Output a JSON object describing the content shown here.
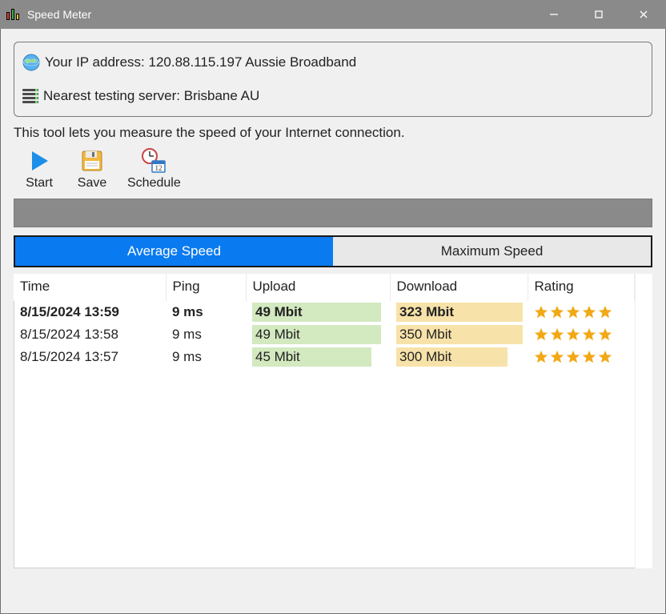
{
  "window": {
    "title": "Speed Meter"
  },
  "info": {
    "ip_label": "Your IP address:",
    "ip_value": "120.88.115.197",
    "isp": "Aussie Broadband",
    "server_label": "Nearest testing server:",
    "server_value": "Brisbane AU"
  },
  "description": "This tool lets you measure the speed of your Internet connection.",
  "toolbar": {
    "start_label": "Start",
    "save_label": "Save",
    "schedule_label": "Schedule"
  },
  "tabs": {
    "avg_label": "Average Speed",
    "max_label": "Maximum Speed",
    "active": "avg",
    "active_bg": "#0a7af0",
    "inactive_bg": "#e8e8e8"
  },
  "table": {
    "columns": {
      "time": "Time",
      "ping": "Ping",
      "upload": "Upload",
      "download": "Download",
      "rating": "Rating"
    },
    "upload_bar_color": "#d3e9c0",
    "download_bar_color": "#f7e2a9",
    "star_color": "#f2a916",
    "rows": [
      {
        "bold": true,
        "time": "8/15/2024 13:59",
        "ping": "9 ms",
        "upload_label": "49 Mbit",
        "upload_fill_pct": 97,
        "download_label": "323 Mbit",
        "download_fill_pct": 100,
        "stars": 5
      },
      {
        "bold": false,
        "time": "8/15/2024 13:58",
        "ping": "9 ms",
        "upload_label": "49 Mbit",
        "upload_fill_pct": 97,
        "download_label": "350 Mbit",
        "download_fill_pct": 100,
        "stars": 5
      },
      {
        "bold": false,
        "time": "8/15/2024 13:57",
        "ping": "9 ms",
        "upload_label": "45 Mbit",
        "upload_fill_pct": 90,
        "download_label": "300 Mbit",
        "download_fill_pct": 88,
        "stars": 5
      }
    ]
  }
}
